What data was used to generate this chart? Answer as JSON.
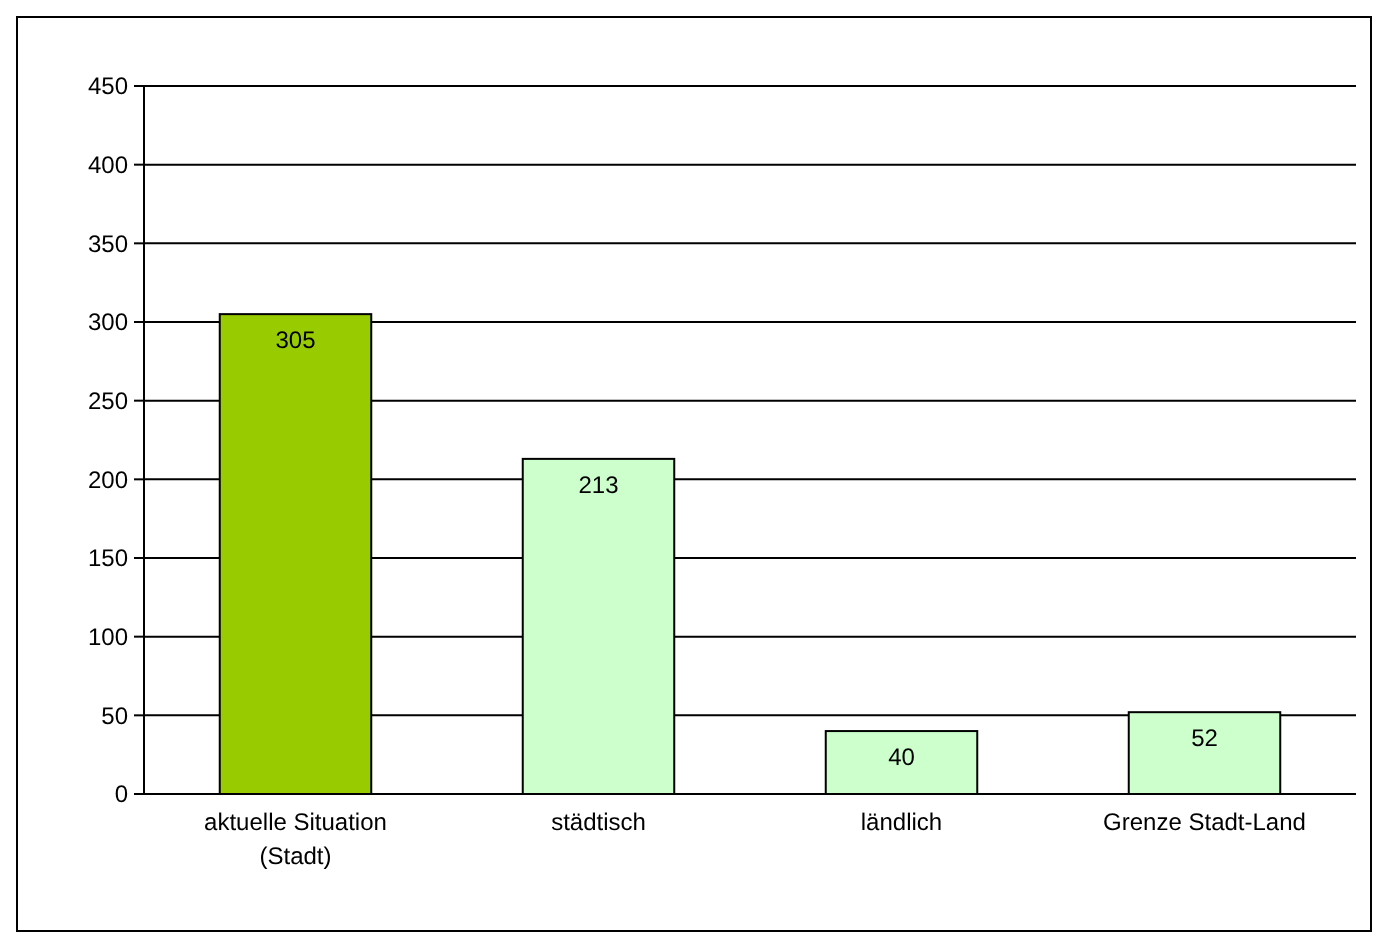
{
  "chart_data": {
    "type": "bar",
    "categories": [
      "aktuelle Situation (Stadt)",
      "städtisch",
      "ländlich",
      "Grenze Stadt-Land"
    ],
    "values": [
      305,
      213,
      40,
      52
    ],
    "colors": [
      "#99cc00",
      "#ccffcc",
      "#ccffcc",
      "#ccffcc"
    ],
    "ylim": [
      0,
      450
    ],
    "yticks": [
      0,
      50,
      100,
      150,
      200,
      250,
      300,
      350,
      400,
      450
    ],
    "grid": "y",
    "data_labels": true
  }
}
